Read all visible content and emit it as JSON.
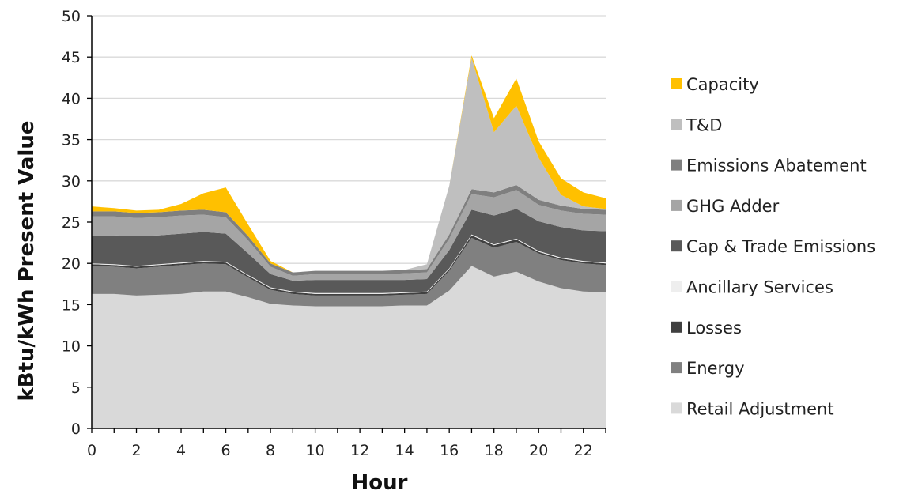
{
  "chart_data": {
    "type": "area",
    "stacked": true,
    "xlabel": "Hour",
    "ylabel": "kBtu/kWh Present Value",
    "xlim": [
      0,
      23
    ],
    "ylim": [
      0,
      50
    ],
    "x_ticks": [
      0,
      2,
      4,
      6,
      8,
      10,
      12,
      14,
      16,
      18,
      20,
      22
    ],
    "y_ticks": [
      0,
      5,
      10,
      15,
      20,
      25,
      30,
      35,
      40,
      45,
      50
    ],
    "grid": "horizontal",
    "legend_position": "right",
    "x": [
      0,
      1,
      2,
      3,
      4,
      5,
      6,
      7,
      8,
      9,
      10,
      11,
      12,
      13,
      14,
      15,
      16,
      17,
      18,
      19,
      20,
      21,
      22,
      23
    ],
    "series": [
      {
        "name": "Retail Adjustment",
        "color": "#d9d9d9",
        "values": [
          16.3,
          16.3,
          16.1,
          16.2,
          16.3,
          16.6,
          16.6,
          15.9,
          15.1,
          14.9,
          14.8,
          14.8,
          14.8,
          14.8,
          14.9,
          14.9,
          16.7,
          19.7,
          18.4,
          19.0,
          17.8,
          17.0,
          16.6,
          16.5
        ]
      },
      {
        "name": "Energy",
        "color": "#808080",
        "values": [
          3.4,
          3.3,
          3.3,
          3.4,
          3.5,
          3.4,
          3.3,
          2.4,
          1.7,
          1.4,
          1.3,
          1.3,
          1.3,
          1.3,
          1.3,
          1.4,
          2.4,
          3.4,
          3.5,
          3.6,
          3.4,
          3.4,
          3.4,
          3.3
        ]
      },
      {
        "name": "Losses",
        "color": "#404040",
        "values": [
          0.2,
          0.2,
          0.2,
          0.2,
          0.2,
          0.2,
          0.2,
          0.2,
          0.2,
          0.2,
          0.2,
          0.2,
          0.2,
          0.2,
          0.2,
          0.2,
          0.2,
          0.3,
          0.3,
          0.3,
          0.2,
          0.2,
          0.2,
          0.2
        ]
      },
      {
        "name": "Ancillary Services",
        "color": "#eeeeee",
        "values": [
          0.1,
          0.1,
          0.1,
          0.1,
          0.1,
          0.1,
          0.1,
          0.1,
          0.1,
          0.1,
          0.1,
          0.1,
          0.1,
          0.1,
          0.1,
          0.1,
          0.1,
          0.1,
          0.1,
          0.1,
          0.1,
          0.1,
          0.1,
          0.1
        ]
      },
      {
        "name": "Cap & Trade Emissions",
        "color": "#595959",
        "values": [
          3.4,
          3.5,
          3.6,
          3.5,
          3.5,
          3.5,
          3.4,
          2.6,
          1.6,
          1.3,
          1.6,
          1.6,
          1.6,
          1.6,
          1.5,
          1.5,
          2.2,
          3.0,
          3.5,
          3.6,
          3.6,
          3.7,
          3.7,
          3.8
        ]
      },
      {
        "name": "GHG Adder",
        "color": "#a5a5a5",
        "values": [
          2.3,
          2.3,
          2.2,
          2.2,
          2.2,
          2.1,
          2.0,
          1.6,
          0.9,
          0.6,
          0.7,
          0.7,
          0.7,
          0.7,
          0.8,
          0.8,
          1.4,
          1.9,
          2.2,
          2.3,
          2.0,
          2.0,
          2.0,
          2.0
        ]
      },
      {
        "name": "Emissions Abatement",
        "color": "#7f7f7f",
        "values": [
          0.6,
          0.6,
          0.6,
          0.6,
          0.6,
          0.6,
          0.6,
          0.5,
          0.4,
          0.4,
          0.4,
          0.4,
          0.4,
          0.4,
          0.4,
          0.4,
          0.5,
          0.6,
          0.6,
          0.6,
          0.6,
          0.6,
          0.6,
          0.6
        ]
      },
      {
        "name": "T&D",
        "color": "#bfbfbf",
        "values": [
          0,
          0,
          0,
          0,
          0,
          0,
          0,
          0,
          0,
          0,
          0,
          0,
          0,
          0,
          0,
          0.6,
          5.9,
          15.9,
          7.3,
          9.6,
          5.1,
          1.3,
          0.3,
          0.1
        ]
      },
      {
        "name": "Capacity",
        "color": "#ffc000",
        "values": [
          0.6,
          0.4,
          0.3,
          0.3,
          0.8,
          2.0,
          3.0,
          1.4,
          0.3,
          0,
          0,
          0,
          0,
          0,
          0,
          0,
          0,
          0.3,
          1.7,
          3.3,
          2.0,
          2.0,
          1.7,
          1.3
        ]
      }
    ]
  }
}
